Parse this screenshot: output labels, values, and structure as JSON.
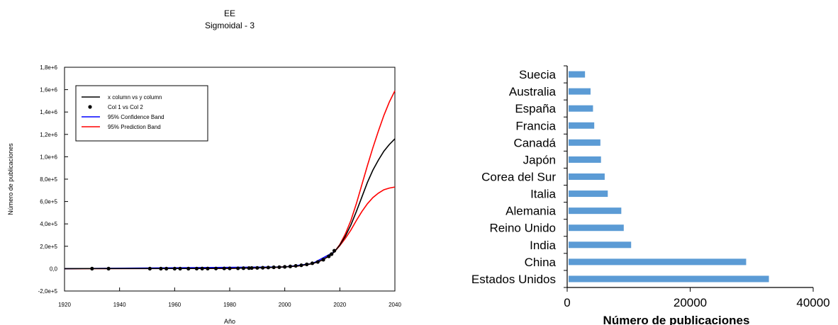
{
  "chart_data": [
    {
      "type": "line",
      "title": "EE",
      "subtitle": "Sigmoidal - 3",
      "xlabel": "Año",
      "ylabel": "Número de publicaciones",
      "xlim": [
        1920,
        2040
      ],
      "ylim": [
        -200000,
        1800000
      ],
      "x_ticks": [
        1920,
        1940,
        1960,
        1980,
        2000,
        2020,
        2040
      ],
      "y_ticks": [
        {
          "value": -200000,
          "label": "-2,0e+5"
        },
        {
          "value": 0,
          "label": "0,0"
        },
        {
          "value": 200000,
          "label": "2,0e+5"
        },
        {
          "value": 400000,
          "label": "4,0e+5"
        },
        {
          "value": 600000,
          "label": "6,0e+5"
        },
        {
          "value": 800000,
          "label": "8,0e+5"
        },
        {
          "value": 1000000,
          "label": "1,0e+6"
        },
        {
          "value": 1200000,
          "label": "1,2e+6"
        },
        {
          "value": 1400000,
          "label": "1,4e+6"
        },
        {
          "value": 1600000,
          "label": "1,6e+6"
        },
        {
          "value": 1800000,
          "label": "1,8e+6"
        }
      ],
      "legend_position": "top-left",
      "series": [
        {
          "name": "x column vs y column",
          "kind": "line",
          "color": "#000000",
          "x": [
            1920,
            1960,
            1980,
            1990,
            2000,
            2005,
            2010,
            2013,
            2016,
            2018,
            2020,
            2022,
            2024,
            2026,
            2028,
            2030,
            2032,
            2034,
            2036,
            2038,
            2040
          ],
          "y": [
            0,
            1000,
            3000,
            7000,
            15000,
            25000,
            45000,
            70000,
            110000,
            150000,
            210000,
            290000,
            390000,
            510000,
            640000,
            770000,
            880000,
            970000,
            1050000,
            1110000,
            1160000
          ]
        },
        {
          "name": "Col 1 vs Col 2",
          "kind": "scatter",
          "color": "#000000",
          "x": [
            1930,
            1936,
            1951,
            1955,
            1957,
            1960,
            1962,
            1965,
            1968,
            1970,
            1972,
            1975,
            1978,
            1980,
            1983,
            1985,
            1987,
            1988,
            1990,
            1992,
            1994,
            1996,
            1998,
            2000,
            2002,
            2004,
            2006,
            2008,
            2010,
            2012,
            2014,
            2016,
            2017,
            2018
          ],
          "y": [
            0,
            0,
            0,
            0,
            0,
            0,
            0,
            0,
            500,
            1000,
            1000,
            1500,
            2000,
            2500,
            3000,
            4000,
            5000,
            5500,
            7000,
            8000,
            10000,
            12000,
            13000,
            16000,
            20000,
            25000,
            30000,
            38000,
            48000,
            60000,
            80000,
            110000,
            130000,
            160000
          ]
        },
        {
          "name": "95% Confidence Band",
          "kind": "line",
          "color": "#0000ff",
          "x": [
            1920,
            2000,
            2010,
            2018
          ],
          "y": [
            0,
            15000,
            45000,
            150000
          ]
        },
        {
          "name": "95% Prediction Band (upper)",
          "kind": "line",
          "color": "#ff0000",
          "x": [
            1920,
            1960,
            1980,
            1990,
            2000,
            2005,
            2010,
            2013,
            2016,
            2018,
            2020,
            2022,
            2024,
            2026,
            2028,
            2030,
            2032,
            2034,
            2036,
            2038,
            2040
          ],
          "y": [
            0,
            1000,
            3000,
            7000,
            15000,
            25000,
            45000,
            70000,
            110000,
            150000,
            215000,
            310000,
            430000,
            580000,
            750000,
            920000,
            1080000,
            1230000,
            1370000,
            1490000,
            1590000
          ]
        },
        {
          "name": "95% Prediction Band (lower)",
          "kind": "line",
          "color": "#ff0000",
          "x": [
            1920,
            1960,
            1980,
            1990,
            2000,
            2005,
            2010,
            2013,
            2016,
            2018,
            2020,
            2022,
            2024,
            2026,
            2028,
            2030,
            2032,
            2034,
            2036,
            2038,
            2040
          ],
          "y": [
            0,
            1000,
            3000,
            7000,
            15000,
            25000,
            45000,
            70000,
            110000,
            150000,
            205000,
            270000,
            345000,
            430000,
            510000,
            580000,
            635000,
            675000,
            705000,
            720000,
            730000
          ]
        }
      ],
      "legend": [
        {
          "label": "x column vs y column",
          "kind": "line",
          "color": "#000000"
        },
        {
          "label": "Col 1 vs Col 2",
          "kind": "dot",
          "color": "#000000"
        },
        {
          "label": "95% Confidence Band",
          "kind": "line",
          "color": "#0000ff"
        },
        {
          "label": "95% Prediction Band",
          "kind": "line",
          "color": "#ff0000"
        }
      ]
    },
    {
      "type": "bar",
      "orientation": "horizontal",
      "xlabel": "Número de publicaciones",
      "ylabel": "",
      "xlim": [
        0,
        40000
      ],
      "x_ticks": [
        0,
        20000,
        40000
      ],
      "bar_color": "#5b9bd5",
      "categories": [
        "Suecia",
        "Australia",
        "España",
        "Francia",
        "Canadá",
        "Japón",
        "Corea del Sur",
        "Italia",
        "Alemania",
        "Reino Unido",
        "India",
        "China",
        "Estados Unidos"
      ],
      "values": [
        2900,
        3800,
        4200,
        4400,
        5400,
        5500,
        6100,
        6600,
        8800,
        9200,
        10400,
        29100,
        32800
      ]
    }
  ]
}
